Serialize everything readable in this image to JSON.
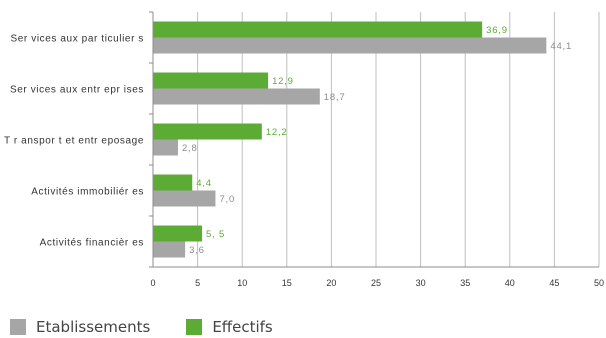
{
  "chart_data": {
    "type": "bar",
    "orientation": "horizontal",
    "categories": [
      "Ser vices aux par ticulier s",
      "Ser vices aux entr epr ises",
      "T r anspor t et entr eposage",
      "Activités immobiliér es",
      "Activités financièr es"
    ],
    "series": [
      {
        "name": "Effectifs",
        "color": "#5cab34",
        "values": [
          36.9,
          12.9,
          12.2,
          4.4,
          5.5
        ],
        "labels": [
          "36,9",
          "12,9",
          "12,2",
          "4,4",
          "5, 5"
        ]
      },
      {
        "name": "Etablissements",
        "color": "#a6a6a6",
        "values": [
          44.1,
          18.7,
          2.8,
          7.0,
          3.6
        ],
        "labels": [
          "44,1",
          "18,7",
          "2,8",
          "7,0",
          "3,6"
        ]
      }
    ],
    "xlim": [
      0,
      50
    ],
    "xticks": [
      0,
      5,
      10,
      15,
      20,
      25,
      30,
      35,
      40,
      45,
      50
    ],
    "grid": true,
    "title": "",
    "xlabel": "",
    "ylabel": "",
    "legend_position": "bottom-left"
  },
  "legend": {
    "items": [
      {
        "label": "Etablissements",
        "color": "#a6a6a6"
      },
      {
        "label": "Effectifs",
        "color": "#5cab34"
      }
    ]
  }
}
